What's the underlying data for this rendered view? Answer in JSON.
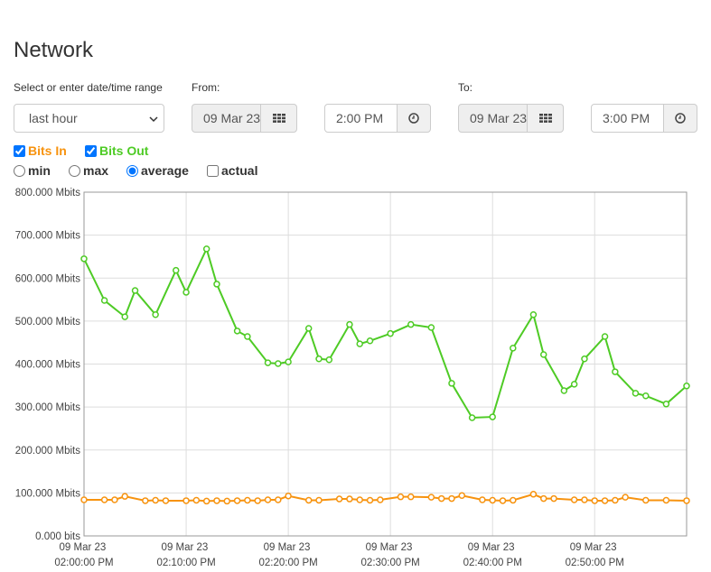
{
  "title": "Network",
  "controls": {
    "range_label": "Select or enter date/time range",
    "range": "last hour",
    "from_label": "From:",
    "from_date": "09 Mar 23",
    "from_time": "2:00 PM",
    "to_label": "To:",
    "to_date": "09 Mar 23",
    "to_time": "3:00 PM",
    "stats": [
      "min",
      "max",
      "average"
    ],
    "actual": "actual"
  },
  "chart_data": {
    "type": "line",
    "series": [
      {
        "name": "Bits In",
        "color": "#f7930f",
        "x": [
          "09 Mar 23 02:00:00 PM",
          "09 Mar 23 02:02:00 PM",
          "09 Mar 23 02:03:00 PM",
          "09 Mar 23 02:04:00 PM",
          "09 Mar 23 02:06:00 PM",
          "09 Mar 23 02:07:00 PM",
          "09 Mar 23 02:08:00 PM",
          "09 Mar 23 02:10:00 PM",
          "09 Mar 23 02:11:00 PM",
          "09 Mar 23 02:12:00 PM",
          "09 Mar 23 02:13:00 PM",
          "09 Mar 23 02:14:00 PM",
          "09 Mar 23 02:15:00 PM",
          "09 Mar 23 02:16:00 PM",
          "09 Mar 23 02:17:00 PM",
          "09 Mar 23 02:18:00 PM",
          "09 Mar 23 02:19:00 PM",
          "09 Mar 23 02:20:00 PM",
          "09 Mar 23 02:22:00 PM",
          "09 Mar 23 02:23:00 PM",
          "09 Mar 23 02:25:00 PM",
          "09 Mar 23 02:26:00 PM",
          "09 Mar 23 02:27:00 PM",
          "09 Mar 23 02:28:00 PM",
          "09 Mar 23 02:29:00 PM",
          "09 Mar 23 02:31:00 PM",
          "09 Mar 23 02:32:00 PM",
          "09 Mar 23 02:34:00 PM",
          "09 Mar 23 02:35:00 PM",
          "09 Mar 23 02:36:00 PM",
          "09 Mar 23 02:37:00 PM",
          "09 Mar 23 02:39:00 PM",
          "09 Mar 23 02:40:00 PM",
          "09 Mar 23 02:41:00 PM",
          "09 Mar 23 02:42:00 PM",
          "09 Mar 23 02:44:00 PM",
          "09 Mar 23 02:45:00 PM",
          "09 Mar 23 02:46:00 PM",
          "09 Mar 23 02:48:00 PM",
          "09 Mar 23 02:49:00 PM",
          "09 Mar 23 02:50:00 PM",
          "09 Mar 23 02:51:00 PM",
          "09 Mar 23 02:52:00 PM",
          "09 Mar 23 02:53:00 PM",
          "09 Mar 23 02:55:00 PM",
          "09 Mar 23 02:57:00 PM",
          "09 Mar 23 02:59:00 PM"
        ],
        "values": [
          84,
          84,
          84,
          92,
          82,
          83,
          82,
          82,
          83,
          81,
          82,
          81,
          82,
          83,
          82,
          84,
          84,
          93,
          83,
          83,
          86,
          86,
          84,
          83,
          84,
          91,
          91,
          90,
          87,
          87,
          94,
          84,
          83,
          82,
          83,
          97,
          87,
          87,
          84,
          84,
          82,
          82,
          83,
          90,
          83,
          83,
          82
        ]
      },
      {
        "name": "Bits Out",
        "color": "#4ecb25",
        "x": [
          "09 Mar 23 02:00:00 PM",
          "09 Mar 23 02:02:00 PM",
          "09 Mar 23 02:04:00 PM",
          "09 Mar 23 02:05:00 PM",
          "09 Mar 23 02:07:00 PM",
          "09 Mar 23 02:09:00 PM",
          "09 Mar 23 02:10:00 PM",
          "09 Mar 23 02:12:00 PM",
          "09 Mar 23 02:13:00 PM",
          "09 Mar 23 02:15:00 PM",
          "09 Mar 23 02:16:00 PM",
          "09 Mar 23 02:18:00 PM",
          "09 Mar 23 02:19:00 PM",
          "09 Mar 23 02:20:00 PM",
          "09 Mar 23 02:22:00 PM",
          "09 Mar 23 02:23:00 PM",
          "09 Mar 23 02:24:00 PM",
          "09 Mar 23 02:26:00 PM",
          "09 Mar 23 02:27:00 PM",
          "09 Mar 23 02:28:00 PM",
          "09 Mar 23 02:30:00 PM",
          "09 Mar 23 02:32:00 PM",
          "09 Mar 23 02:34:00 PM",
          "09 Mar 23 02:36:00 PM",
          "09 Mar 23 02:38:00 PM",
          "09 Mar 23 02:40:00 PM",
          "09 Mar 23 02:42:00 PM",
          "09 Mar 23 02:44:00 PM",
          "09 Mar 23 02:45:00 PM",
          "09 Mar 23 02:47:00 PM",
          "09 Mar 23 02:48:00 PM",
          "09 Mar 23 02:49:00 PM",
          "09 Mar 23 02:51:00 PM",
          "09 Mar 23 02:52:00 PM",
          "09 Mar 23 02:54:00 PM",
          "09 Mar 23 02:55:00 PM",
          "09 Mar 23 02:57:00 PM",
          "09 Mar 23 02:59:00 PM"
        ],
        "values": [
          645,
          548,
          510,
          571,
          515,
          618,
          567,
          668,
          586,
          477,
          464,
          403,
          401,
          405,
          483,
          412,
          410,
          492,
          447,
          454,
          471,
          492,
          485,
          355,
          275,
          277,
          437,
          515,
          422,
          338,
          353,
          412,
          464,
          382,
          332,
          326,
          307,
          349
        ]
      }
    ],
    "xlim": [
      "09 Mar 23 02:00:00 PM",
      "09 Mar 23 02:59:00 PM"
    ],
    "xticks": [
      "09 Mar 23 02:00:00 PM",
      "09 Mar 23 02:10:00 PM",
      "09 Mar 23 02:20:00 PM",
      "09 Mar 23 02:30:00 PM",
      "09 Mar 23 02:40:00 PM",
      "09 Mar 23 02:50:00 PM"
    ],
    "ylim": [
      0,
      800
    ],
    "yticks": [
      {
        "value": 0,
        "label": "0.000 bits"
      },
      {
        "value": 100,
        "label": "100.000 Mbits"
      },
      {
        "value": 200,
        "label": "200.000 Mbits"
      },
      {
        "value": 300,
        "label": "300.000 Mbits"
      },
      {
        "value": 400,
        "label": "400.000 Mbits"
      },
      {
        "value": 500,
        "label": "500.000 Mbits"
      },
      {
        "value": 600,
        "label": "600.000 Mbits"
      },
      {
        "value": 700,
        "label": "700.000 Mbits"
      },
      {
        "value": 800,
        "label": "800.000 Mbits"
      }
    ],
    "grid": true
  }
}
